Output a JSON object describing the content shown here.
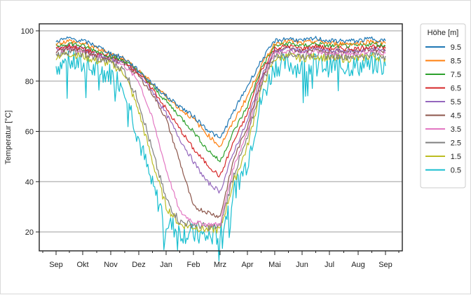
{
  "chart_data": {
    "type": "line",
    "title": "",
    "xlabel": "",
    "ylabel": "Temperatur [°C]",
    "ylim": [
      15,
      103
    ],
    "yticks": [
      20,
      40,
      60,
      80,
      100
    ],
    "grid": "horizontal",
    "legend": {
      "title": "Höhe [m]",
      "position": "right-outside"
    },
    "x_tick_labels": [
      "Sep",
      "Okt",
      "Nov",
      "Dez",
      "Jan",
      "Feb",
      "Mrz",
      "Apr",
      "Mai",
      "Jun",
      "Jul",
      "Aug",
      "Sep"
    ],
    "x": [
      "Sep",
      "mid-Sep",
      "Okt",
      "mid-Okt",
      "Nov",
      "mid-Nov",
      "Dez",
      "mid-Dez",
      "Jan",
      "mid-Jan",
      "Feb",
      "mid-Feb",
      "Mrz",
      "mid-Mrz",
      "Apr",
      "mid-Apr",
      "Mai",
      "mid-Mai",
      "Jun",
      "mid-Jun",
      "Jul",
      "mid-Jul",
      "Aug",
      "mid-Aug",
      "Sep"
    ],
    "series": [
      {
        "name": "9.5",
        "color": "#1f77b4",
        "values": [
          96,
          97,
          96,
          94,
          91,
          89,
          84,
          79,
          74,
          70,
          66,
          61,
          57,
          68,
          78,
          88,
          96,
          97,
          96,
          97,
          96,
          96,
          96,
          97,
          96
        ]
      },
      {
        "name": "8.5",
        "color": "#ff7f0e",
        "values": [
          95,
          96,
          95,
          93,
          91,
          89,
          84,
          79,
          74,
          69,
          65,
          59,
          54,
          64,
          74,
          86,
          95,
          96,
          95,
          96,
          95,
          95,
          95,
          96,
          95
        ]
      },
      {
        "name": "7.5",
        "color": "#2ca02c",
        "values": [
          94,
          95,
          94,
          92,
          90,
          88,
          84,
          78,
          72,
          66,
          60,
          53,
          48,
          60,
          70,
          85,
          94,
          95,
          94,
          95,
          94,
          94,
          94,
          95,
          94
        ]
      },
      {
        "name": "6.5",
        "color": "#d62728",
        "values": [
          93,
          94,
          93,
          91,
          90,
          88,
          83,
          77,
          69,
          61,
          53,
          47,
          42,
          56,
          67,
          84,
          93,
          94,
          93,
          94,
          93,
          93,
          93,
          94,
          93
        ]
      },
      {
        "name": "5.5",
        "color": "#9467bd",
        "values": [
          93,
          94,
          93,
          91,
          89,
          87,
          83,
          76,
          67,
          57,
          48,
          40,
          36,
          52,
          64,
          82,
          92,
          93,
          92,
          93,
          92,
          92,
          92,
          93,
          92
        ]
      },
      {
        "name": "4.5",
        "color": "#8c564b",
        "values": [
          92,
          93,
          92,
          90,
          89,
          87,
          82,
          75,
          65,
          48,
          30,
          28,
          26,
          49,
          62,
          81,
          92,
          93,
          92,
          93,
          92,
          92,
          92,
          93,
          92
        ]
      },
      {
        "name": "3.5",
        "color": "#e377c2",
        "values": [
          92,
          93,
          92,
          90,
          89,
          86,
          80,
          65,
          45,
          28,
          24,
          23,
          23,
          46,
          60,
          80,
          91,
          92,
          91,
          92,
          91,
          91,
          91,
          92,
          91
        ]
      },
      {
        "name": "2.5",
        "color": "#7f7f7f",
        "values": [
          91,
          92,
          91,
          89,
          88,
          84,
          72,
          52,
          33,
          24,
          23,
          22,
          22,
          43,
          57,
          79,
          90,
          91,
          90,
          91,
          90,
          90,
          90,
          91,
          90
        ]
      },
      {
        "name": "1.5",
        "color": "#bcbd22",
        "values": [
          90,
          91,
          90,
          88,
          87,
          83,
          68,
          48,
          30,
          23,
          22,
          21,
          21,
          40,
          54,
          77,
          89,
          90,
          89,
          90,
          89,
          89,
          89,
          90,
          89
        ]
      },
      {
        "name": "0.5",
        "color": "#17becf",
        "values": [
          86,
          88,
          86,
          84,
          83,
          78,
          57,
          38,
          24,
          20,
          19,
          18,
          19,
          36,
          48,
          72,
          86,
          87,
          85,
          87,
          86,
          86,
          86,
          87,
          86
        ]
      }
    ]
  }
}
